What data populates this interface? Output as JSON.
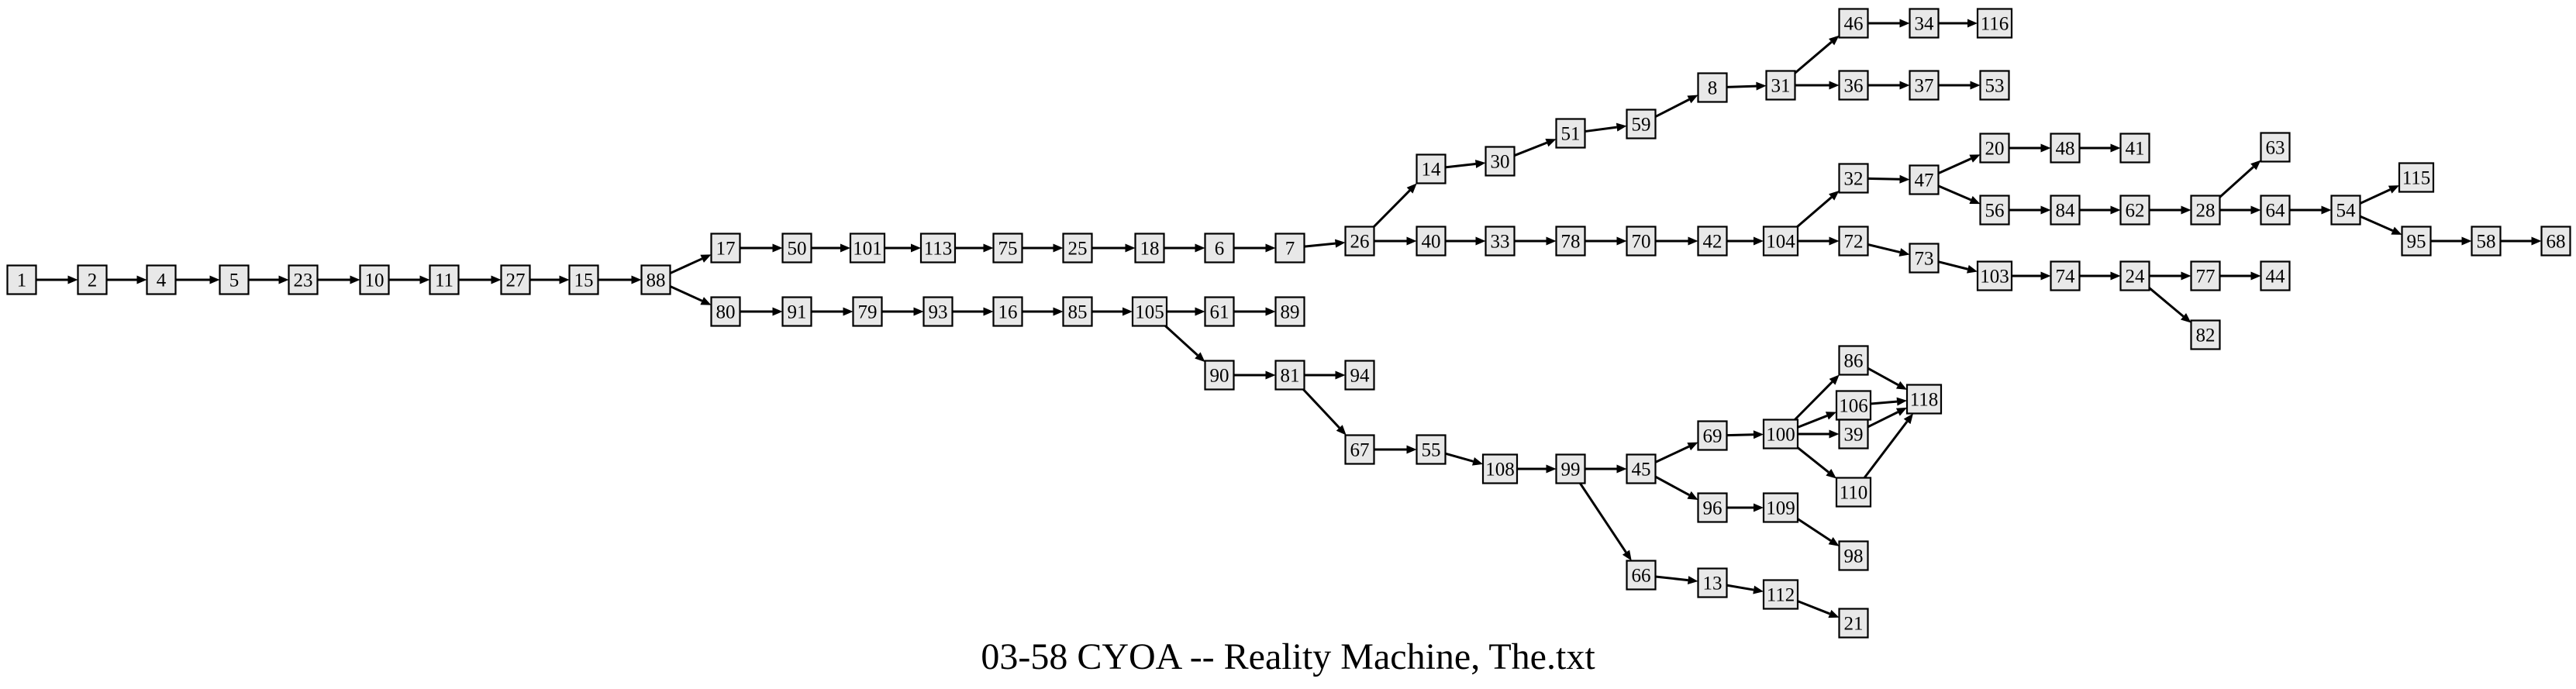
{
  "caption": "03-58 CYOA -- Reality Machine, The.txt",
  "nodes": [
    "1",
    "2",
    "4",
    "5",
    "23",
    "10",
    "11",
    "27",
    "15",
    "88",
    "17",
    "80",
    "50",
    "91",
    "101",
    "79",
    "113",
    "93",
    "75",
    "16",
    "25",
    "85",
    "18",
    "105",
    "6",
    "61",
    "89",
    "90",
    "81",
    "94",
    "67",
    "55",
    "7",
    "26",
    "14",
    "40",
    "30",
    "33",
    "51",
    "78",
    "59",
    "70",
    "8",
    "42",
    "31",
    "46",
    "34",
    "116",
    "36",
    "37",
    "53",
    "104",
    "32",
    "72",
    "47",
    "20",
    "48",
    "41",
    "56",
    "84",
    "62",
    "28",
    "63",
    "64",
    "54",
    "115",
    "95",
    "58",
    "68",
    "73",
    "103",
    "74",
    "24",
    "77",
    "44",
    "82",
    "108",
    "99",
    "45",
    "69",
    "100",
    "86",
    "106",
    "39",
    "110",
    "118",
    "96",
    "109",
    "98",
    "66",
    "13",
    "112",
    "21"
  ],
  "edges": [
    [
      "1",
      "2"
    ],
    [
      "2",
      "4"
    ],
    [
      "4",
      "5"
    ],
    [
      "5",
      "23"
    ],
    [
      "23",
      "10"
    ],
    [
      "10",
      "11"
    ],
    [
      "11",
      "27"
    ],
    [
      "27",
      "15"
    ],
    [
      "15",
      "88"
    ],
    [
      "88",
      "17"
    ],
    [
      "88",
      "80"
    ],
    [
      "17",
      "50"
    ],
    [
      "50",
      "101"
    ],
    [
      "101",
      "113"
    ],
    [
      "113",
      "75"
    ],
    [
      "75",
      "25"
    ],
    [
      "25",
      "18"
    ],
    [
      "18",
      "6"
    ],
    [
      "6",
      "7"
    ],
    [
      "7",
      "26"
    ],
    [
      "26",
      "14"
    ],
    [
      "26",
      "40"
    ],
    [
      "14",
      "30"
    ],
    [
      "30",
      "51"
    ],
    [
      "51",
      "59"
    ],
    [
      "59",
      "8"
    ],
    [
      "8",
      "31"
    ],
    [
      "31",
      "46"
    ],
    [
      "31",
      "36"
    ],
    [
      "46",
      "34"
    ],
    [
      "34",
      "116"
    ],
    [
      "36",
      "37"
    ],
    [
      "37",
      "53"
    ],
    [
      "40",
      "33"
    ],
    [
      "33",
      "78"
    ],
    [
      "78",
      "70"
    ],
    [
      "70",
      "42"
    ],
    [
      "42",
      "104"
    ],
    [
      "104",
      "32"
    ],
    [
      "104",
      "72"
    ],
    [
      "32",
      "47"
    ],
    [
      "47",
      "20"
    ],
    [
      "47",
      "56"
    ],
    [
      "20",
      "48"
    ],
    [
      "48",
      "41"
    ],
    [
      "56",
      "84"
    ],
    [
      "84",
      "62"
    ],
    [
      "62",
      "28"
    ],
    [
      "28",
      "63"
    ],
    [
      "28",
      "64"
    ],
    [
      "64",
      "54"
    ],
    [
      "54",
      "115"
    ],
    [
      "54",
      "95"
    ],
    [
      "95",
      "58"
    ],
    [
      "58",
      "68"
    ],
    [
      "72",
      "73"
    ],
    [
      "73",
      "103"
    ],
    [
      "103",
      "74"
    ],
    [
      "74",
      "24"
    ],
    [
      "24",
      "77"
    ],
    [
      "24",
      "82"
    ],
    [
      "77",
      "44"
    ],
    [
      "80",
      "91"
    ],
    [
      "91",
      "79"
    ],
    [
      "79",
      "93"
    ],
    [
      "93",
      "16"
    ],
    [
      "16",
      "85"
    ],
    [
      "85",
      "105"
    ],
    [
      "105",
      "61"
    ],
    [
      "105",
      "90"
    ],
    [
      "61",
      "89"
    ],
    [
      "90",
      "81"
    ],
    [
      "81",
      "94"
    ],
    [
      "81",
      "67"
    ],
    [
      "67",
      "55"
    ],
    [
      "55",
      "108"
    ],
    [
      "108",
      "99"
    ],
    [
      "99",
      "45"
    ],
    [
      "99",
      "66"
    ],
    [
      "45",
      "69"
    ],
    [
      "45",
      "96"
    ],
    [
      "69",
      "100"
    ],
    [
      "100",
      "86"
    ],
    [
      "100",
      "106"
    ],
    [
      "100",
      "39"
    ],
    [
      "100",
      "110"
    ],
    [
      "86",
      "118"
    ],
    [
      "106",
      "118"
    ],
    [
      "39",
      "118"
    ],
    [
      "110",
      "118"
    ],
    [
      "96",
      "109"
    ],
    [
      "109",
      "98"
    ],
    [
      "66",
      "13"
    ],
    [
      "13",
      "112"
    ],
    [
      "112",
      "21"
    ]
  ]
}
